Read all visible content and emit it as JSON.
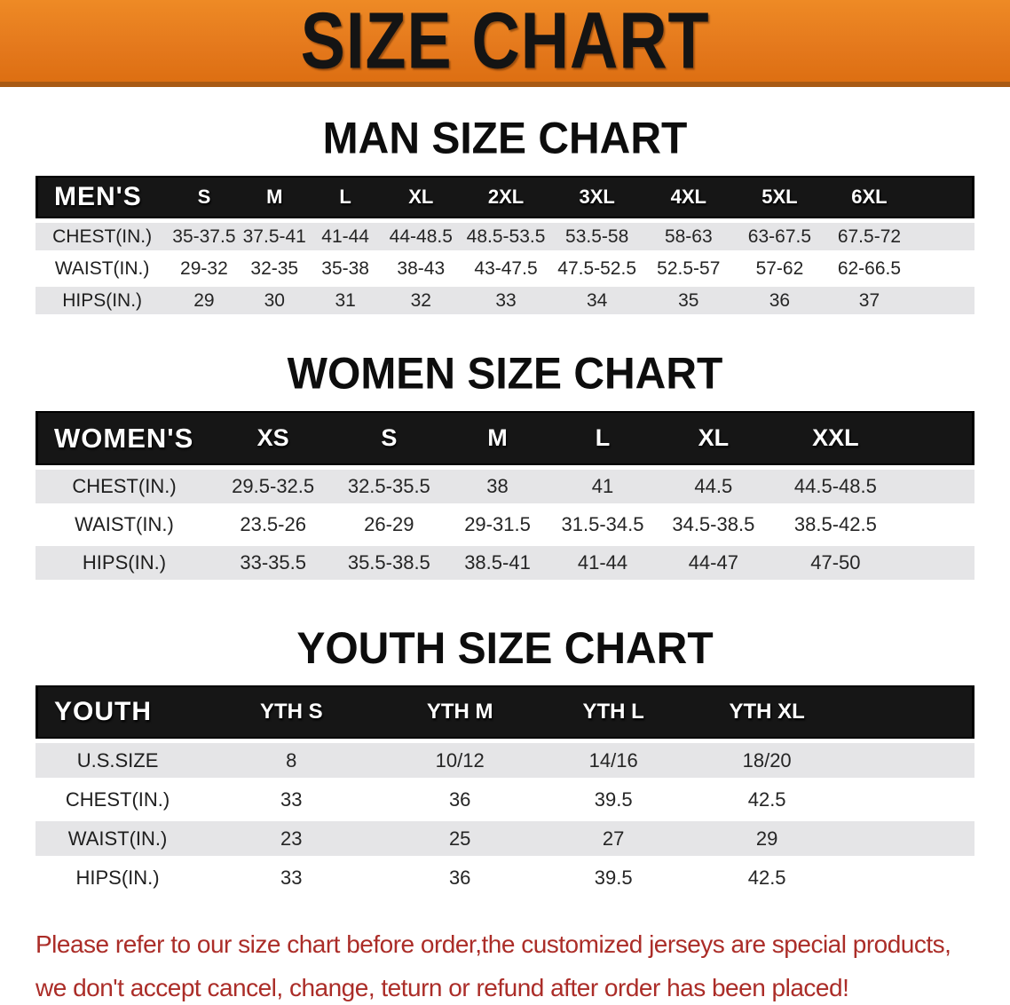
{
  "banner": {
    "title": "SIZE CHART"
  },
  "colors": {
    "banner_bg": "#e4781c",
    "banner_text": "#141414",
    "band_bg": "#161616",
    "band_text": "#ffffff",
    "row_stripe": "#e5e5e7",
    "footnote_text": "#ab2d28"
  },
  "sections": [
    {
      "heading": "MAN SIZE CHART",
      "table": {
        "header": {
          "label": "MEN'S",
          "sizes": [
            "S",
            "M",
            "L",
            "XL",
            "2XL",
            "3XL",
            "4XL",
            "5XL",
            "6XL"
          ]
        },
        "rows": [
          {
            "label": "CHEST(IN.)",
            "values": [
              "35-37.5",
              "37.5-41",
              "41-44",
              "44-48.5",
              "48.5-53.5",
              "53.5-58",
              "58-63",
              "63-67.5",
              "67.5-72"
            ]
          },
          {
            "label": "WAIST(IN.)",
            "values": [
              "29-32",
              "32-35",
              "35-38",
              "38-43",
              "43-47.5",
              "47.5-52.5",
              "52.5-57",
              "57-62",
              "62-66.5"
            ]
          },
          {
            "label": "HIPS(IN.)",
            "values": [
              "29",
              "30",
              "31",
              "32",
              "33",
              "34",
              "35",
              "36",
              "37"
            ]
          }
        ]
      }
    },
    {
      "heading": "WOMEN SIZE CHART",
      "table": {
        "header": {
          "label": "WOMEN'S",
          "sizes": [
            "XS",
            "S",
            "M",
            "L",
            "XL",
            "XXL"
          ]
        },
        "rows": [
          {
            "label": "CHEST(IN.)",
            "values": [
              "29.5-32.5",
              "32.5-35.5",
              "38",
              "41",
              "44.5",
              "44.5-48.5"
            ]
          },
          {
            "label": "WAIST(IN.)",
            "values": [
              "23.5-26",
              "26-29",
              "29-31.5",
              "31.5-34.5",
              "34.5-38.5",
              "38.5-42.5"
            ]
          },
          {
            "label": "HIPS(IN.)",
            "values": [
              "33-35.5",
              "35.5-38.5",
              "38.5-41",
              "41-44",
              "44-47",
              "47-50"
            ]
          }
        ]
      }
    },
    {
      "heading": "YOUTH SIZE CHART",
      "table": {
        "header": {
          "label": "YOUTH",
          "sizes": [
            "YTH S",
            "YTH M",
            "YTH L",
            "YTH XL"
          ]
        },
        "rows": [
          {
            "label": "U.S.SIZE",
            "values": [
              "8",
              "10/12",
              "14/16",
              "18/20"
            ]
          },
          {
            "label": "CHEST(IN.)",
            "values": [
              "33",
              "36",
              "39.5",
              "42.5"
            ]
          },
          {
            "label": "WAIST(IN.)",
            "values": [
              "23",
              "25",
              "27",
              "29"
            ]
          },
          {
            "label": "HIPS(IN.)",
            "values": [
              "33",
              "36",
              "39.5",
              "42.5"
            ]
          }
        ]
      }
    }
  ],
  "footnote": {
    "line1": "Please refer to our size chart before order,the customized jerseys are special products,",
    "line2": "we don't accept cancel, change, teturn or refund after order has been placed!"
  }
}
